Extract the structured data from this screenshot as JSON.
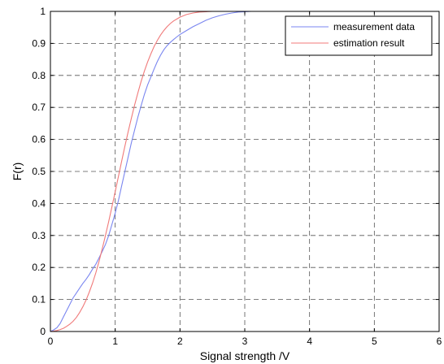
{
  "chart_data": {
    "type": "line",
    "title": "",
    "xlabel": "Signal strength /V",
    "ylabel": "F(r)",
    "xlim": [
      0,
      6
    ],
    "ylim": [
      0,
      1
    ],
    "xticks": [
      "0",
      "1",
      "2",
      "3",
      "4",
      "5",
      "6"
    ],
    "yticks": [
      "0",
      "0.1",
      "0.2",
      "0.3",
      "0.4",
      "0.5",
      "0.6",
      "0.7",
      "0.8",
      "0.9",
      "1"
    ],
    "grid": true,
    "legend_position": "top-right",
    "series": [
      {
        "name": "measurement data",
        "color": "#7a86f0",
        "x": [
          0,
          0.05,
          0.1,
          0.15,
          0.2,
          0.25,
          0.3,
          0.35,
          0.4,
          0.45,
          0.5,
          0.55,
          0.6,
          0.65,
          0.7,
          0.75,
          0.8,
          0.85,
          0.9,
          0.95,
          1.0,
          1.05,
          1.1,
          1.15,
          1.2,
          1.25,
          1.3,
          1.35,
          1.4,
          1.45,
          1.5,
          1.55,
          1.6,
          1.65,
          1.7,
          1.75,
          1.8,
          1.85,
          1.9,
          1.95,
          2.0,
          2.1,
          2.2,
          2.3,
          2.4,
          2.5,
          2.6,
          2.7,
          2.8,
          2.9,
          3.0,
          3.1,
          3.2
        ],
        "y": [
          0,
          0.005,
          0.012,
          0.025,
          0.045,
          0.065,
          0.085,
          0.105,
          0.12,
          0.135,
          0.15,
          0.163,
          0.178,
          0.195,
          0.21,
          0.23,
          0.25,
          0.272,
          0.3,
          0.335,
          0.37,
          0.41,
          0.455,
          0.5,
          0.545,
          0.59,
          0.63,
          0.67,
          0.705,
          0.74,
          0.77,
          0.795,
          0.82,
          0.843,
          0.863,
          0.88,
          0.893,
          0.903,
          0.912,
          0.92,
          0.928,
          0.94,
          0.952,
          0.962,
          0.972,
          0.98,
          0.986,
          0.991,
          0.995,
          0.998,
          0.999,
          1.0,
          1.0
        ]
      },
      {
        "name": "estimation result",
        "color": "#f07a7a",
        "x": [
          0,
          0.05,
          0.1,
          0.15,
          0.2,
          0.25,
          0.3,
          0.35,
          0.4,
          0.45,
          0.5,
          0.55,
          0.6,
          0.65,
          0.7,
          0.75,
          0.8,
          0.85,
          0.9,
          0.95,
          1.0,
          1.05,
          1.1,
          1.15,
          1.2,
          1.25,
          1.3,
          1.35,
          1.4,
          1.45,
          1.5,
          1.55,
          1.6,
          1.65,
          1.7,
          1.75,
          1.8,
          1.85,
          1.9,
          1.95,
          2.0,
          2.1,
          2.2,
          2.3,
          2.4,
          2.5,
          2.6
        ],
        "y": [
          0,
          0.001,
          0.003,
          0.006,
          0.01,
          0.016,
          0.023,
          0.032,
          0.044,
          0.059,
          0.077,
          0.098,
          0.123,
          0.151,
          0.183,
          0.219,
          0.258,
          0.3,
          0.344,
          0.39,
          0.437,
          0.485,
          0.532,
          0.579,
          0.624,
          0.667,
          0.708,
          0.746,
          0.781,
          0.813,
          0.842,
          0.867,
          0.89,
          0.909,
          0.926,
          0.94,
          0.952,
          0.962,
          0.97,
          0.976,
          0.982,
          0.99,
          0.995,
          0.998,
          0.999,
          1.0,
          1.0
        ]
      }
    ]
  }
}
